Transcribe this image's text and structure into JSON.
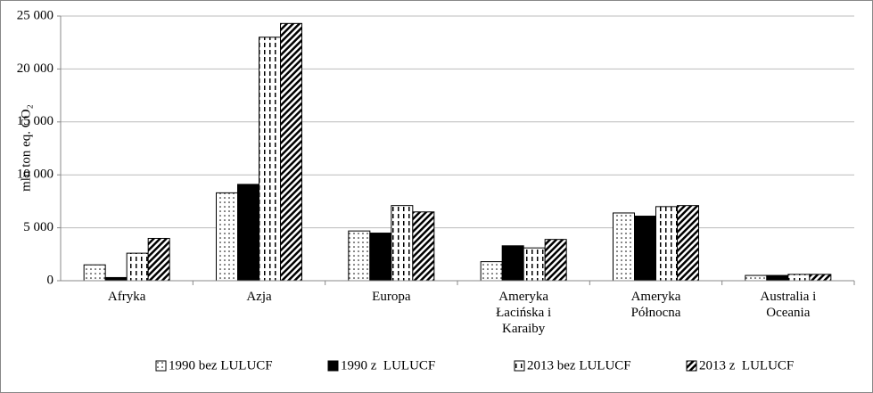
{
  "chart_data": {
    "type": "bar",
    "y_label": "mln ton eq. CO₂",
    "categories": [
      "Afryka",
      "Azja",
      "Europa",
      "Ameryka Łacińska i Karaiby",
      "Ameryka Północna",
      "Australia i Oceania"
    ],
    "series": [
      {
        "name": "1990 bez LULUCF",
        "color": "#000000",
        "pattern": "dots",
        "values": [
          1500,
          8300,
          4700,
          1800,
          6400,
          500
        ]
      },
      {
        "name": "1990 z  LULUCF",
        "color": "#000000",
        "pattern": "solid",
        "values": [
          300,
          9100,
          4500,
          3300,
          6100,
          500
        ]
      },
      {
        "name": "2013 bez LULUCF",
        "color": "#000000",
        "pattern": "dashes",
        "values": [
          2600,
          23000,
          7100,
          3100,
          7000,
          600
        ]
      },
      {
        "name": "2013 z  LULUCF",
        "color": "#000000",
        "pattern": "diagonal",
        "values": [
          4000,
          24300,
          6500,
          3900,
          7100,
          600
        ]
      }
    ],
    "ylim": [
      0,
      25000
    ],
    "yticks": [
      0,
      {
        "value": 5000,
        "label": "5 000"
      },
      {
        "value": 10000,
        "label": "10 000"
      },
      {
        "value": 15000,
        "label": "15 000"
      },
      {
        "value": 20000,
        "label": "20 000"
      },
      {
        "value": 25000,
        "label": "25 000"
      }
    ],
    "grid": true,
    "legend": "bottom"
  }
}
